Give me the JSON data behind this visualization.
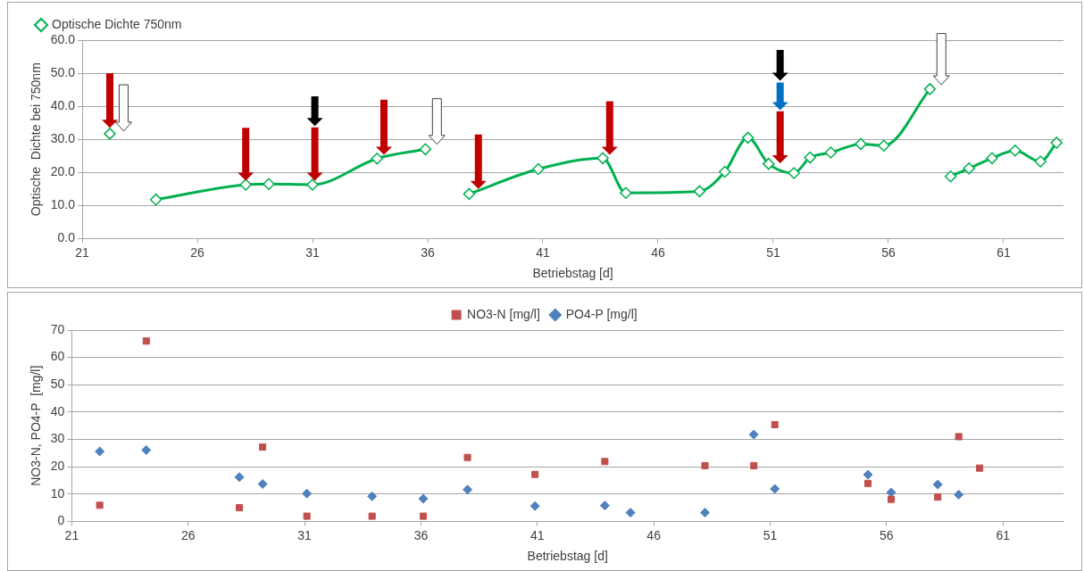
{
  "chart_data": [
    {
      "type": "line",
      "xlabel": "Betriebstag [d]",
      "ylabel": "Optische  Dichte bei 750nm",
      "xlim": [
        21,
        63.6
      ],
      "xticks": [
        21,
        26,
        31,
        36,
        41,
        46,
        51,
        56,
        61
      ],
      "ylim": [
        0,
        60
      ],
      "yticks": [
        {
          "value": 0,
          "label": "0.0"
        },
        {
          "value": 10,
          "label": "10.0"
        },
        {
          "value": 20,
          "label": "20.0"
        },
        {
          "value": 30,
          "label": "30.0"
        },
        {
          "value": 40,
          "label": "40.0"
        },
        {
          "value": 50,
          "label": "50.0"
        },
        {
          "value": 60,
          "label": "60.0"
        }
      ],
      "grid": "y",
      "legend": "top left",
      "marker": "diamond",
      "series": [
        {
          "name": "Optische Dichte 750nm",
          "color": "#00b050",
          "x": [
            22.2,
            23.2,
            24.2,
            28.1,
            29.1,
            31.0,
            33.8,
            35.9,
            36.9,
            37.8,
            40.8,
            43.6,
            44.6,
            47.8,
            48.9,
            49.9,
            50.8,
            51.9,
            52.6,
            53.5,
            54.8,
            55.8,
            57.8,
            58.2,
            58.7,
            59.5,
            60.5,
            61.5,
            62.6,
            63.3
          ],
          "values": [
            31.7,
            null,
            11.8,
            16.3,
            16.5,
            16.3,
            24.2,
            27.0,
            null,
            13.5,
            21.0,
            24.3,
            13.8,
            14.3,
            20.2,
            30.5,
            22.6,
            19.8,
            24.5,
            26.0,
            28.6,
            28.1,
            45.2,
            null,
            18.8,
            21.2,
            24.3,
            26.6,
            23.3,
            29.0
          ]
        }
      ]
    },
    {
      "type": "scatter",
      "xlabel": "Betriebstag [d]",
      "ylabel": "NO3-N, PO4-P  [mg/l]",
      "xlim": [
        21,
        63.6
      ],
      "xticks": [
        21,
        26,
        31,
        36,
        41,
        46,
        51,
        56,
        61
      ],
      "ylim": [
        0,
        70
      ],
      "yticks": [
        0,
        10,
        20,
        30,
        40,
        50,
        60,
        70
      ],
      "grid": "y",
      "legend": "top",
      "series": [
        {
          "name": "NO3-N [mg/l]",
          "color": "#c0504d",
          "marker": "square",
          "x": [
            22.2,
            24.2,
            28.2,
            29.2,
            31.1,
            33.9,
            36.1,
            38.0,
            40.9,
            43.9,
            48.2,
            50.3,
            51.2,
            55.2,
            56.2,
            58.2,
            59.1,
            60.0
          ],
          "values": [
            5.9,
            66,
            5.0,
            27.2,
            1.9,
            1.9,
            1.9,
            23.4,
            17.2,
            21.9,
            20.4,
            20.4,
            35.4,
            13.9,
            8.1,
            8.9,
            31.0,
            19.5
          ]
        },
        {
          "name": "PO4-P [mg/l]",
          "color": "#4f81bd",
          "marker": "diamond",
          "x": [
            22.2,
            24.2,
            28.2,
            29.2,
            31.1,
            33.9,
            36.1,
            38.0,
            40.9,
            43.9,
            45.0,
            48.2,
            50.3,
            51.2,
            55.2,
            56.2,
            58.2,
            59.1
          ],
          "values": [
            25.6,
            26.1,
            16.2,
            13.7,
            10.2,
            9.2,
            8.3,
            11.6,
            5.6,
            5.8,
            3.2,
            3.2,
            31.8,
            11.9,
            17.1,
            10.6,
            13.5,
            9.8
          ]
        }
      ]
    }
  ]
}
